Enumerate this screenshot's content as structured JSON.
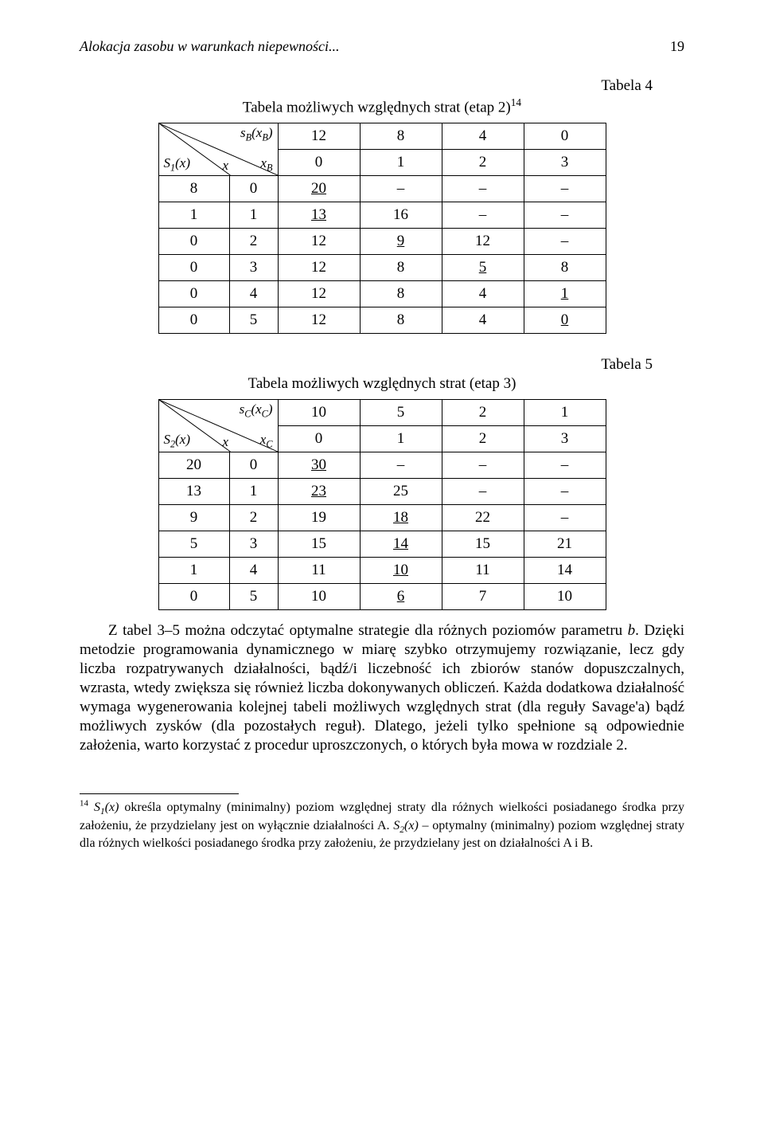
{
  "header": {
    "running_title": "Alokacja zasobu w warunkach niepewności...",
    "page_number": "19"
  },
  "table4": {
    "label": "Tabela 4",
    "caption": "Tabela możliwych względnych strat (etap 2)",
    "caption_sup": "14",
    "diag_top": "s",
    "diag_top_sub": "B",
    "diag_top_arg": "(x",
    "diag_top_arg_sub": "B",
    "diag_top_close": ")",
    "row_label_S": "S",
    "row_label_S_sub": "1",
    "row_label_S_arg": "(x)",
    "diag_bot_left": "x",
    "diag_bot_right": "x",
    "diag_bot_right_sub": "B",
    "col_headers_top": [
      "12",
      "8",
      "4",
      "0"
    ],
    "col_headers_bot": [
      "0",
      "1",
      "2",
      "3"
    ],
    "rows": [
      {
        "lead": "8",
        "x": "0",
        "cells": [
          "20",
          "–",
          "–",
          "–"
        ],
        "underline": [
          0
        ]
      },
      {
        "lead": "1",
        "x": "1",
        "cells": [
          "13",
          "16",
          "–",
          "–"
        ],
        "underline": [
          0
        ]
      },
      {
        "lead": "0",
        "x": "2",
        "cells": [
          "12",
          "9",
          "12",
          "–"
        ],
        "underline": [
          1
        ]
      },
      {
        "lead": "0",
        "x": "3",
        "cells": [
          "12",
          "8",
          "5",
          "8"
        ],
        "underline": [
          2
        ]
      },
      {
        "lead": "0",
        "x": "4",
        "cells": [
          "12",
          "8",
          "4",
          "1"
        ],
        "underline": [
          3
        ]
      },
      {
        "lead": "0",
        "x": "5",
        "cells": [
          "12",
          "8",
          "4",
          "0"
        ],
        "underline": [
          3
        ]
      }
    ],
    "col_widths": {
      "lead": 86,
      "x": 58,
      "data": 100
    },
    "row_height_hdr": 62
  },
  "table5": {
    "label": "Tabela 5",
    "caption": "Tabela możliwych względnych strat (etap 3)",
    "diag_top": "s",
    "diag_top_sub": "C",
    "diag_top_arg": "(x",
    "diag_top_arg_sub": "C",
    "diag_top_close": ")",
    "row_label_S": "S",
    "row_label_S_sub": "2",
    "row_label_S_arg": "(x)",
    "diag_bot_left": "x",
    "diag_bot_right": "x",
    "diag_bot_right_sub": "C",
    "col_headers_top": [
      "10",
      "5",
      "2",
      "1"
    ],
    "col_headers_bot": [
      "0",
      "1",
      "2",
      "3"
    ],
    "rows": [
      {
        "lead": "20",
        "x": "0",
        "cells": [
          "30",
          "–",
          "–",
          "–"
        ],
        "underline": [
          0
        ]
      },
      {
        "lead": "13",
        "x": "1",
        "cells": [
          "23",
          "25",
          "–",
          "–"
        ],
        "underline": [
          0
        ]
      },
      {
        "lead": "9",
        "x": "2",
        "cells": [
          "19",
          "18",
          "22",
          "–"
        ],
        "underline": [
          1
        ]
      },
      {
        "lead": "5",
        "x": "3",
        "cells": [
          "15",
          "14",
          "15",
          "21"
        ],
        "underline": [
          1
        ]
      },
      {
        "lead": "1",
        "x": "4",
        "cells": [
          "11",
          "10",
          "11",
          "14"
        ],
        "underline": [
          1
        ]
      },
      {
        "lead": "0",
        "x": "5",
        "cells": [
          "10",
          "6",
          "7",
          "10"
        ],
        "underline": [
          1
        ]
      }
    ],
    "col_widths": {
      "lead": 86,
      "x": 58,
      "data": 100
    },
    "row_height_hdr": 62
  },
  "body": {
    "p1_a": "Z tabel 3–5 można odczytać optymalne strategie dla różnych poziomów parametru ",
    "p1_b_it": "b",
    "p1_c": ".",
    "p2": "Dzięki metodzie programowania dynamicznego w miarę szybko otrzymujemy rozwiązanie, lecz gdy liczba rozpatrywanych działalności, bądź/i liczebność ich zbiorów stanów dopuszczalnych, wzrasta, wtedy zwiększa się również liczba dokonywanych obliczeń. Każda dodatkowa działalność wymaga wygenerowania kolejnej tabeli możliwych względnych strat (dla reguły Savage'a) bądź możliwych zysków (dla pozostałych reguł). Dlatego, jeżeli tylko spełnione są odpowiednie założenia, warto korzystać z procedur uproszczonych, o których była mowa w rozdziale 2."
  },
  "footnote": {
    "mark": "14",
    "t1": " ",
    "S1": "S",
    "S1_sub": "1",
    "S1_arg": "(x)",
    "t2": " określa optymalny (minimalny) poziom względnej straty dla różnych wielkości posiadanego środka przy założeniu, że przydzielany jest on wyłącznie działalności A. ",
    "S2": "S",
    "S2_sub": "2",
    "S2_arg": "(x)",
    "t3": " – optymalny (minimalny) poziom względnej straty dla różnych wielkości posiadanego środka przy założeniu, że przydzielany jest on działalności A i B."
  }
}
